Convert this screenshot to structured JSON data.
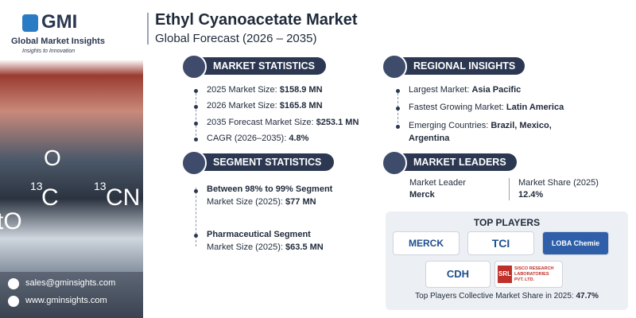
{
  "brand": {
    "name": "GMI",
    "tagline": "Global Market Insights",
    "slogan": "Insights to Innovation"
  },
  "header": {
    "title": "Ethyl Cyanoacetate Market",
    "subtitle": "Global Forecast (2026 – 2035)"
  },
  "image": {
    "top_atom": "O",
    "left_isotope": "13",
    "left_atom": "C",
    "right_isotope": "13",
    "right_group": "CN",
    "edge_text": "tO"
  },
  "contact": {
    "email": "sales@gminsights.com",
    "website": "www.gminsights.com"
  },
  "market_statistics": {
    "title": "MARKET STATISTICS",
    "items": [
      {
        "label": "2025 Market Size:",
        "value": "$158.9 MN"
      },
      {
        "label": "2026 Market Size:",
        "value": "$165.8 MN"
      },
      {
        "label": "2035 Forecast Market Size:",
        "value": "$253.1 MN"
      },
      {
        "label": "CAGR (2026–2035):",
        "value": "4.8%"
      }
    ]
  },
  "segment_statistics": {
    "title": "SEGMENT STATISTICS",
    "items": [
      {
        "name": "Between 98% to 99% Segment",
        "label": "Market Size (2025):",
        "value": "$77 MN"
      },
      {
        "name": "Pharmaceutical Segment",
        "label": "Market Size (2025):",
        "value": "$63.5 MN"
      }
    ]
  },
  "regional_insights": {
    "title": "REGIONAL INSIGHTS",
    "items": [
      {
        "label": "Largest Market:",
        "value": "Asia Pacific"
      },
      {
        "label": "Fastest Growing Market:",
        "value": "Latin America"
      },
      {
        "label": "Emerging Countries:",
        "value": "Brazil, Mexico,",
        "value_cont": "Argentina"
      }
    ]
  },
  "market_leaders": {
    "title": "MARKET LEADERS",
    "leader_label": "Market Leader",
    "leader": "Merck",
    "share_label": "Market Share (2025)",
    "share": "12.4%"
  },
  "top_players": {
    "title": "TOP PLAYERS",
    "players": [
      "MERCK",
      "TCI",
      "LOBA Chemie",
      "CDH",
      "SRL"
    ],
    "srl_caption": "SISCO RESEARCH LABORATORIES PVT. LTD.",
    "footer_label": "Top Players Collective Market Share in 2025:",
    "footer_value": "47.7%"
  }
}
